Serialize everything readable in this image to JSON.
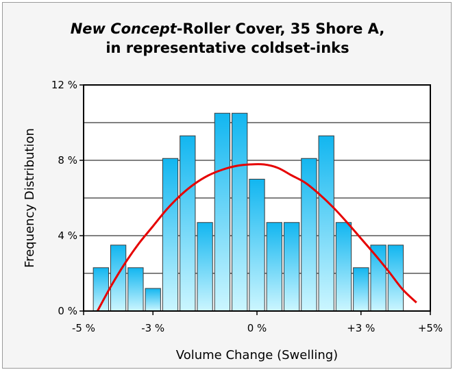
{
  "chart_data": {
    "type": "bar",
    "title_italic": "New Concept",
    "title_rest": "-Roller Cover, 35 Shore A,",
    "title_line2": "in representative coldset-inks",
    "xlabel": "Volume Change (Swelling)",
    "ylabel": "Frequency Distribution",
    "xlim": [
      -5,
      5
    ],
    "ylim": [
      0,
      12
    ],
    "x_ticks": [
      {
        "value": -5,
        "label": "-5 %"
      },
      {
        "value": -3,
        "label": "-3 %"
      },
      {
        "value": 0,
        "label": "0 %"
      },
      {
        "value": 3,
        "label": "+3 %"
      },
      {
        "value": 5,
        "label": "+5%"
      }
    ],
    "y_ticks": [
      {
        "value": 0,
        "label": "0 %"
      },
      {
        "value": 4,
        "label": "4 %"
      },
      {
        "value": 8,
        "label": "8 %"
      },
      {
        "value": 12,
        "label": "12 %"
      }
    ],
    "y_gridlines": [
      2,
      4,
      6,
      8,
      10
    ],
    "bin_width": 0.5,
    "bars": [
      {
        "x": -4.5,
        "value": 2.3
      },
      {
        "x": -4.0,
        "value": 3.5
      },
      {
        "x": -3.5,
        "value": 2.3
      },
      {
        "x": -3.0,
        "value": 1.2
      },
      {
        "x": -2.5,
        "value": 8.1
      },
      {
        "x": -2.0,
        "value": 9.3
      },
      {
        "x": -1.5,
        "value": 4.7
      },
      {
        "x": -1.0,
        "value": 10.5
      },
      {
        "x": -0.5,
        "value": 10.5
      },
      {
        "x": 0.0,
        "value": 7.0
      },
      {
        "x": 0.5,
        "value": 4.7
      },
      {
        "x": 1.0,
        "value": 4.7
      },
      {
        "x": 1.5,
        "value": 8.1
      },
      {
        "x": 2.0,
        "value": 9.3
      },
      {
        "x": 2.5,
        "value": 4.7
      },
      {
        "x": 3.0,
        "value": 2.3
      },
      {
        "x": 3.5,
        "value": 3.5
      },
      {
        "x": 4.0,
        "value": 3.5
      }
    ],
    "curve": {
      "type": "normal-fit",
      "x": [
        -4.6,
        -4.2,
        -3.8,
        -3.4,
        -3.0,
        -2.6,
        -2.2,
        -1.8,
        -1.4,
        -1.0,
        -0.6,
        -0.2,
        0.2,
        0.6,
        1.0,
        1.4,
        1.8,
        2.2,
        2.6,
        3.0,
        3.4,
        3.8,
        4.2,
        4.6
      ],
      "y": [
        0.0,
        1.35,
        2.55,
        3.6,
        4.5,
        5.4,
        6.15,
        6.75,
        7.2,
        7.5,
        7.7,
        7.78,
        7.78,
        7.6,
        7.2,
        6.8,
        6.2,
        5.5,
        4.7,
        3.85,
        3.0,
        2.1,
        1.15,
        0.45
      ]
    },
    "colors": {
      "bar_top": "#12b6f0",
      "bar_bottom": "#ccf6ff",
      "bar_stroke": "#3a3a3a",
      "curve": "#e60000",
      "gridline": "#000000",
      "frame_background": "#f5f5f5"
    },
    "grid": true,
    "legend": "none"
  }
}
